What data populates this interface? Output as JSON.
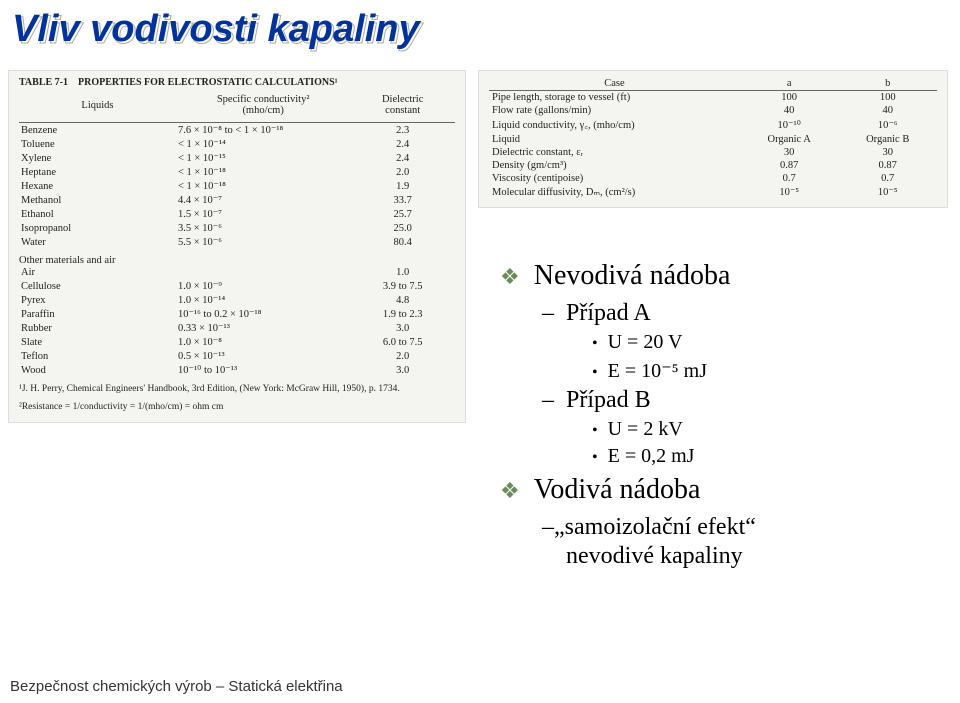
{
  "title": "Vliv vodivosti kapaliny",
  "footer": "Bezpečnost chemických výrob – Statická elektřina",
  "table1": {
    "heading": "TABLE 7-1 PROPERTIES FOR ELECTROSTATIC CALCULATIONS¹",
    "columns": [
      "Liquids",
      "Specific conductivity²\n(mho/cm)",
      "Dielectric\nconstant"
    ],
    "rows": [
      [
        "Benzene",
        "7.6 × 10⁻⁸ to < 1 × 10⁻¹⁸",
        "2.3"
      ],
      [
        "Toluene",
        "< 1 × 10⁻¹⁴",
        "2.4"
      ],
      [
        "Xylene",
        "< 1 × 10⁻¹⁵",
        "2.4"
      ],
      [
        "Heptane",
        "< 1 × 10⁻¹⁸",
        "2.0"
      ],
      [
        "Hexane",
        "< 1 × 10⁻¹⁸",
        "1.9"
      ],
      [
        "Methanol",
        "4.4 × 10⁻⁷",
        "33.7"
      ],
      [
        "Ethanol",
        "1.5 × 10⁻⁷",
        "25.7"
      ],
      [
        "Isopropanol",
        "3.5 × 10⁻⁶",
        "25.0"
      ],
      [
        "Water",
        "5.5 × 10⁻⁶",
        "80.4"
      ]
    ],
    "section2": "Other materials and air",
    "rows2": [
      [
        "Air",
        "",
        "1.0"
      ],
      [
        "Cellulose",
        "1.0 × 10⁻⁹",
        "3.9 to 7.5"
      ],
      [
        "Pyrex",
        "1.0 × 10⁻¹⁴",
        "4.8"
      ],
      [
        "Paraffin",
        "10⁻¹⁶ to 0.2 × 10⁻¹⁸",
        "1.9 to 2.3"
      ],
      [
        "Rubber",
        "0.33 × 10⁻¹³",
        "3.0"
      ],
      [
        "Slate",
        "1.0 × 10⁻⁸",
        "6.0 to 7.5"
      ],
      [
        "Teflon",
        "0.5 × 10⁻¹³",
        "2.0"
      ],
      [
        "Wood",
        "10⁻¹⁰ to 10⁻¹³",
        "3.0"
      ]
    ],
    "footnote1": "¹J. H. Perry, Chemical Engineers' Handbook, 3rd Edition, (New York: McGraw Hill, 1950), p. 1734.",
    "footnote2": "²Resistance = 1/conductivity = 1/(mho/cm) = ohm cm"
  },
  "table2": {
    "columns": [
      "Case",
      "a",
      "b"
    ],
    "rows": [
      [
        "Pipe length, storage to vessel (ft)",
        "100",
        "100"
      ],
      [
        "Flow rate (gallons/min)",
        "40",
        "40"
      ],
      [
        "Liquid conductivity, γ꜀, (mho/cm)",
        "10⁻¹⁰",
        "10⁻⁶"
      ],
      [
        "Liquid",
        "Organic A",
        "Organic B"
      ],
      [
        "Dielectric constant, εᵣ",
        "30",
        "30"
      ],
      [
        "Density (gm/cm³)",
        "0.87",
        "0.87"
      ],
      [
        "Viscosity (centipoise)",
        "0.7",
        "0.7"
      ],
      [
        "Molecular diffusivity, Dₘ, (cm²/s)",
        "10⁻⁵",
        "10⁻⁵"
      ]
    ]
  },
  "bullets": {
    "h1a": "Nevodivá nádoba",
    "c1_label": "Případ A",
    "c1_u": "U = 20 V",
    "c1_e": "E = 10⁻⁵ mJ",
    "c2_label": "Případ B",
    "c2_u": "U = 2 kV",
    "c2_e": "E = 0,2 mJ",
    "h1b": "Vodivá nádoba",
    "eff1": "„samoizolační efekt“",
    "eff2": "nevodivé kapaliny"
  }
}
